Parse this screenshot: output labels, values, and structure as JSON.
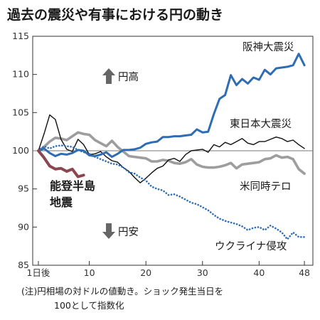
{
  "chart_data": {
    "type": "line",
    "title": "過去の震災や有事における円の動き",
    "y_ticks": [
      85,
      90,
      95,
      100,
      105,
      110,
      115
    ],
    "ylim": [
      85,
      115
    ],
    "x_ticks": [
      {
        "x": 1,
        "label": "1日後"
      },
      {
        "x": 10,
        "label": "10"
      },
      {
        "x": 20,
        "label": "20"
      },
      {
        "x": 30,
        "label": "30"
      },
      {
        "x": 40,
        "label": "40"
      },
      {
        "x": 48,
        "label": "48"
      }
    ],
    "xlim": [
      0,
      49.5
    ],
    "baseline": 100,
    "grid": false,
    "legend": "labels placed beside each series",
    "arrows": {
      "up": "円高",
      "down": "円安"
    },
    "series": [
      {
        "name": "阪神大震災",
        "color": "#2f6db2",
        "style": "solid",
        "points": [
          [
            1,
            100
          ],
          [
            2,
            100.3
          ],
          [
            3,
            99.7
          ],
          [
            4,
            99.3
          ],
          [
            5,
            99.6
          ],
          [
            6,
            99.5
          ],
          [
            7,
            99.7
          ],
          [
            8,
            100.1
          ],
          [
            9,
            100
          ],
          [
            10,
            99.4
          ],
          [
            11,
            99.3
          ],
          [
            12,
            99.5
          ],
          [
            13,
            99.8
          ],
          [
            14,
            99.2
          ],
          [
            15,
            99.6
          ],
          [
            16,
            100.1
          ],
          [
            17,
            100.1
          ],
          [
            18,
            100.2
          ],
          [
            19,
            100.4
          ],
          [
            20,
            100.9
          ],
          [
            21,
            101.1
          ],
          [
            22,
            101.2
          ],
          [
            23,
            101.8
          ],
          [
            24,
            101.8
          ],
          [
            25,
            101.9
          ],
          [
            26,
            101.9
          ],
          [
            27,
            102
          ],
          [
            28,
            102.1
          ],
          [
            29,
            102.8
          ],
          [
            30,
            102.4
          ],
          [
            31,
            102.5
          ],
          [
            32,
            104.8
          ],
          [
            33,
            106.8
          ],
          [
            34,
            107.3
          ],
          [
            35,
            109.9
          ],
          [
            36,
            108.6
          ],
          [
            37,
            109.4
          ],
          [
            38,
            108.8
          ],
          [
            39,
            109.6
          ],
          [
            40,
            109.3
          ],
          [
            41,
            110.6
          ],
          [
            42,
            110
          ],
          [
            43,
            110.8
          ],
          [
            44,
            110.9
          ],
          [
            45,
            111
          ],
          [
            46,
            111.2
          ],
          [
            47,
            112.7
          ],
          [
            48,
            111.2
          ]
        ]
      },
      {
        "name": "東日本大震災",
        "color": "#111111",
        "style": "solid",
        "points": [
          [
            1,
            100
          ],
          [
            2,
            102.2
          ],
          [
            3,
            104.7
          ],
          [
            4,
            104.1
          ],
          [
            5,
            101.5
          ],
          [
            6,
            100.2
          ],
          [
            7,
            99.9
          ],
          [
            8,
            101.5
          ],
          [
            9,
            100.8
          ],
          [
            10,
            99.5
          ],
          [
            11,
            99.6
          ],
          [
            12,
            99.9
          ],
          [
            13,
            99.2
          ],
          [
            14,
            98.7
          ],
          [
            15,
            98.5
          ],
          [
            16,
            97.8
          ],
          [
            17,
            97.3
          ],
          [
            18,
            96.5
          ],
          [
            19,
            95.8
          ],
          [
            20,
            96.4
          ],
          [
            21,
            97.1
          ],
          [
            22,
            97.7
          ],
          [
            23,
            98
          ],
          [
            24,
            98.8
          ],
          [
            25,
            99
          ],
          [
            26,
            98.6
          ],
          [
            27,
            99.5
          ],
          [
            28,
            100
          ],
          [
            29,
            100.1
          ],
          [
            30,
            100.2
          ],
          [
            31,
            99.8
          ],
          [
            32,
            100.8
          ],
          [
            33,
            100.5
          ],
          [
            34,
            101.1
          ],
          [
            35,
            100.8
          ],
          [
            36,
            101.2
          ],
          [
            37,
            101.6
          ],
          [
            38,
            101
          ],
          [
            39,
            100.8
          ],
          [
            40,
            101.2
          ],
          [
            41,
            101.2
          ],
          [
            42,
            101.5
          ],
          [
            43,
            101.8
          ],
          [
            44,
            101.6
          ],
          [
            45,
            101.2
          ],
          [
            46,
            101.4
          ],
          [
            47,
            100.8
          ],
          [
            48,
            100.3
          ]
        ]
      },
      {
        "name": "米同時テロ",
        "color": "#9d9d9d",
        "style": "solid",
        "points": [
          [
            1,
            100
          ],
          [
            2,
            100.5
          ],
          [
            3,
            101.2
          ],
          [
            4,
            101.7
          ],
          [
            5,
            101.6
          ],
          [
            6,
            101.4
          ],
          [
            7,
            101.9
          ],
          [
            8,
            102.4
          ],
          [
            9,
            102.2
          ],
          [
            10,
            102.1
          ],
          [
            11,
            101.4
          ],
          [
            12,
            101
          ],
          [
            13,
            100.6
          ],
          [
            14,
            101.3
          ],
          [
            15,
            100.5
          ],
          [
            16,
            99.9
          ],
          [
            17,
            99.3
          ],
          [
            18,
            99.2
          ],
          [
            19,
            99.1
          ],
          [
            20,
            99
          ],
          [
            21,
            98.6
          ],
          [
            22,
            98.6
          ],
          [
            23,
            98.8
          ],
          [
            24,
            98.7
          ],
          [
            25,
            98.4
          ],
          [
            26,
            98.3
          ],
          [
            27,
            98.5
          ],
          [
            28,
            98.9
          ],
          [
            29,
            98.2
          ],
          [
            30,
            97.9
          ],
          [
            31,
            97.8
          ],
          [
            32,
            97.8
          ],
          [
            33,
            97.9
          ],
          [
            34,
            98.1
          ],
          [
            35,
            98.4
          ],
          [
            36,
            97.7
          ],
          [
            37,
            98.2
          ],
          [
            38,
            98.3
          ],
          [
            39,
            98.4
          ],
          [
            40,
            98.5
          ],
          [
            41,
            98.9
          ],
          [
            42,
            99
          ],
          [
            43,
            99.4
          ],
          [
            44,
            99.1
          ],
          [
            45,
            99.2
          ],
          [
            46,
            98.9
          ],
          [
            47,
            97.6
          ],
          [
            48,
            97
          ]
        ]
      },
      {
        "name": "ウクライナ侵攻",
        "color": "#2f6db2",
        "style": "dotted",
        "points": [
          [
            1,
            100
          ],
          [
            2,
            100.6
          ],
          [
            3,
            100.3
          ],
          [
            4,
            100.6
          ],
          [
            5,
            100.7
          ],
          [
            6,
            100.6
          ],
          [
            7,
            100.5
          ],
          [
            8,
            100.1
          ],
          [
            9,
            99.8
          ],
          [
            10,
            99.6
          ],
          [
            11,
            99.2
          ],
          [
            12,
            98.9
          ],
          [
            13,
            98.6
          ],
          [
            14,
            98.3
          ],
          [
            15,
            98.2
          ],
          [
            16,
            97.8
          ],
          [
            17,
            97.2
          ],
          [
            18,
            97
          ],
          [
            19,
            96.5
          ],
          [
            20,
            96.1
          ],
          [
            21,
            95.3
          ],
          [
            22,
            95
          ],
          [
            23,
            94.8
          ],
          [
            24,
            94.2
          ],
          [
            25,
            94.3
          ],
          [
            26,
            94
          ],
          [
            27,
            93.6
          ],
          [
            28,
            93.2
          ],
          [
            29,
            93
          ],
          [
            30,
            92.6
          ],
          [
            31,
            92.2
          ],
          [
            32,
            91.6
          ],
          [
            33,
            91.1
          ],
          [
            34,
            90.8
          ],
          [
            35,
            90.6
          ],
          [
            36,
            90.4
          ],
          [
            37,
            90.1
          ],
          [
            38,
            89.6
          ],
          [
            39,
            89.9
          ],
          [
            40,
            90
          ],
          [
            41,
            89.6
          ],
          [
            42,
            90.2
          ],
          [
            43,
            89.8
          ],
          [
            44,
            89.3
          ],
          [
            45,
            88.4
          ],
          [
            46,
            89.3
          ],
          [
            47,
            88.7
          ],
          [
            48,
            88.7
          ]
        ]
      },
      {
        "name": "能登半島地震",
        "color": "#8b4650",
        "style": "solid",
        "points": [
          [
            1,
            100
          ],
          [
            2,
            99.1
          ],
          [
            3,
            98
          ],
          [
            4,
            97.6
          ],
          [
            5,
            97.7
          ],
          [
            6,
            97.3
          ],
          [
            7,
            97.6
          ],
          [
            8,
            96.6
          ],
          [
            9,
            96.8
          ]
        ]
      }
    ],
    "note": "(注)円相場の対ドルの値動き。ショック発生当日を100として指数化"
  },
  "labels": {
    "noto_line1": "能登半島",
    "noto_line2": "地震",
    "note_line1": "(注)円相場の対ドルの値動き。ショック発生当日を",
    "note_line2": "100として指数化"
  }
}
